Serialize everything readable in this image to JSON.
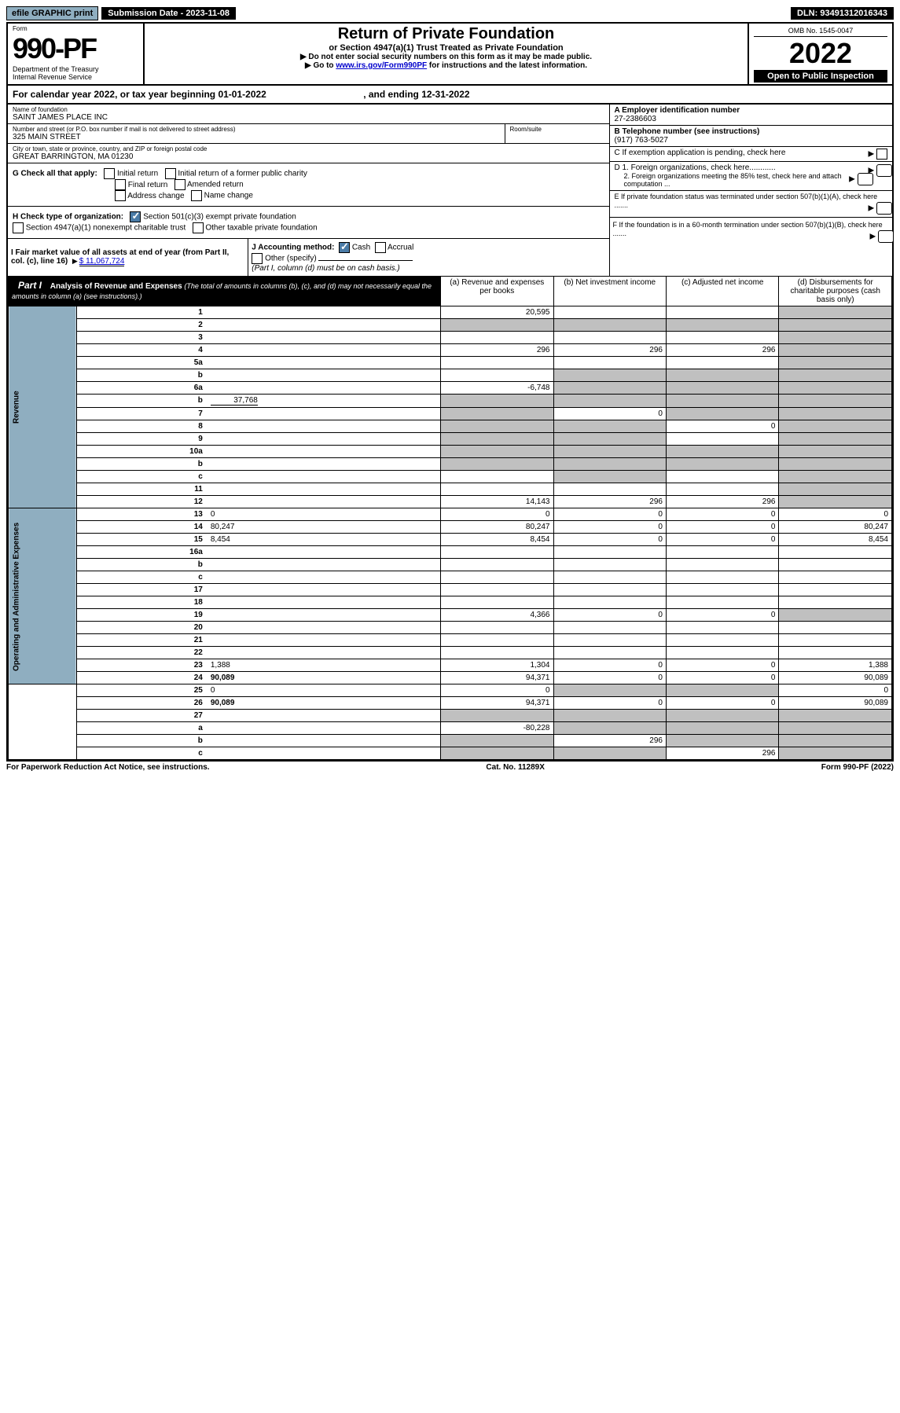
{
  "topbar": {
    "efile": "efile GRAPHIC print",
    "subdate_label": "Submission Date - 2023-11-08",
    "dln": "DLN: 93491312016343"
  },
  "header": {
    "form_label": "Form",
    "form_number": "990-PF",
    "dept": "Department of the Treasury",
    "irs": "Internal Revenue Service",
    "title": "Return of Private Foundation",
    "subtitle": "or Section 4947(a)(1) Trust Treated as Private Foundation",
    "instr1": "▶ Do not enter social security numbers on this form as it may be made public.",
    "instr2_pre": "▶ Go to ",
    "instr2_link": "www.irs.gov/Form990PF",
    "instr2_post": " for instructions and the latest information.",
    "omb": "OMB No. 1545-0047",
    "year": "2022",
    "open": "Open to Public Inspection"
  },
  "calyear": {
    "text_pre": "For calendar year 2022, or tax year beginning ",
    "begin": "01-01-2022",
    "mid": " , and ending ",
    "end": "12-31-2022"
  },
  "entity": {
    "name_label": "Name of foundation",
    "name": "SAINT JAMES PLACE INC",
    "addr_label": "Number and street (or P.O. box number if mail is not delivered to street address)",
    "addr": "325 MAIN STREET",
    "room_label": "Room/suite",
    "city_label": "City or town, state or province, country, and ZIP or foreign postal code",
    "city": "GREAT BARRINGTON, MA  01230",
    "ein_label": "A Employer identification number",
    "ein": "27-2386603",
    "tel_label": "B Telephone number (see instructions)",
    "tel": "(917) 763-5027",
    "c_label": "C If exemption application is pending, check here",
    "d1": "D 1. Foreign organizations, check here............",
    "d2": "2. Foreign organizations meeting the 85% test, check here and attach computation ...",
    "e_label": "E  If private foundation status was terminated under section 507(b)(1)(A), check here .......",
    "f_label": "F  If the foundation is in a 60-month termination under section 507(b)(1)(B), check here .......",
    "g_label": "G Check all that apply:",
    "g_opts": [
      "Initial return",
      "Initial return of a former public charity",
      "Final return",
      "Amended return",
      "Address change",
      "Name change"
    ],
    "h_label": "H Check type of organization:",
    "h_opts": [
      "Section 501(c)(3) exempt private foundation",
      "Section 4947(a)(1) nonexempt charitable trust",
      "Other taxable private foundation"
    ],
    "i_label": "I Fair market value of all assets at end of year (from Part II, col. (c), line 16)",
    "i_value": "$  11,067,724",
    "j_label": "J Accounting method:",
    "j_opts": [
      "Cash",
      "Accrual",
      "Other (specify)"
    ],
    "j_note": "(Part I, column (d) must be on cash basis.)"
  },
  "part1": {
    "header": "Part I",
    "title": "Analysis of Revenue and Expenses",
    "title_note": "(The total of amounts in columns (b), (c), and (d) may not necessarily equal the amounts in column (a) (see instructions).)",
    "cols": {
      "a": "(a) Revenue and expenses per books",
      "b": "(b) Net investment income",
      "c": "(c) Adjusted net income",
      "d": "(d) Disbursements for charitable purposes (cash basis only)"
    },
    "side_revenue": "Revenue",
    "side_expenses": "Operating and Administrative Expenses"
  },
  "rows": [
    {
      "n": "1",
      "d": "",
      "a": "20,595",
      "b": "",
      "c": "",
      "dgray": true
    },
    {
      "n": "2",
      "d": "",
      "a": "",
      "b": "",
      "c": "",
      "allgray": true
    },
    {
      "n": "3",
      "d": "",
      "a": "",
      "b": "",
      "c": "",
      "dgray": true
    },
    {
      "n": "4",
      "d": "",
      "a": "296",
      "b": "296",
      "c": "296",
      "dgray": true
    },
    {
      "n": "5a",
      "d": "",
      "a": "",
      "b": "",
      "c": "",
      "dgray": true
    },
    {
      "n": "b",
      "d": "",
      "a": "",
      "b": "",
      "c": "",
      "bcdgray": true
    },
    {
      "n": "6a",
      "d": "",
      "a": "-6,748",
      "b": "",
      "c": "",
      "bcdgray": true
    },
    {
      "n": "b",
      "d": "",
      "inline": "37,768",
      "a": "",
      "b": "",
      "c": "",
      "allgray": true
    },
    {
      "n": "7",
      "d": "",
      "a": "",
      "b": "0",
      "c": "",
      "agray": true,
      "cdgray": true
    },
    {
      "n": "8",
      "d": "",
      "a": "",
      "b": "",
      "c": "0",
      "abgray": true,
      "dgray": true
    },
    {
      "n": "9",
      "d": "",
      "a": "",
      "b": "",
      "c": "",
      "abgray": true,
      "dgray": true
    },
    {
      "n": "10a",
      "d": "",
      "a": "",
      "b": "",
      "c": "",
      "allgray": true
    },
    {
      "n": "b",
      "d": "",
      "a": "",
      "b": "",
      "c": "",
      "allgray": true
    },
    {
      "n": "c",
      "d": "",
      "a": "",
      "b": "",
      "c": "",
      "bgray": true,
      "dgray": true
    },
    {
      "n": "11",
      "d": "",
      "a": "",
      "b": "",
      "c": "",
      "dgray": true
    },
    {
      "n": "12",
      "d": "",
      "bold": true,
      "a": "14,143",
      "b": "296",
      "c": "296",
      "dgray": true
    },
    {
      "n": "13",
      "d": "0",
      "a": "0",
      "b": "0",
      "c": "0"
    },
    {
      "n": "14",
      "d": "80,247",
      "a": "80,247",
      "b": "0",
      "c": "0"
    },
    {
      "n": "15",
      "d": "8,454",
      "a": "8,454",
      "b": "0",
      "c": "0"
    },
    {
      "n": "16a",
      "d": "",
      "a": "",
      "b": "",
      "c": ""
    },
    {
      "n": "b",
      "d": "",
      "a": "",
      "b": "",
      "c": ""
    },
    {
      "n": "c",
      "d": "",
      "a": "",
      "b": "",
      "c": ""
    },
    {
      "n": "17",
      "d": "",
      "a": "",
      "b": "",
      "c": ""
    },
    {
      "n": "18",
      "d": "",
      "a": "",
      "b": "",
      "c": ""
    },
    {
      "n": "19",
      "d": "",
      "a": "4,366",
      "b": "0",
      "c": "0",
      "dgray": true
    },
    {
      "n": "20",
      "d": "",
      "a": "",
      "b": "",
      "c": ""
    },
    {
      "n": "21",
      "d": "",
      "a": "",
      "b": "",
      "c": ""
    },
    {
      "n": "22",
      "d": "",
      "a": "",
      "b": "",
      "c": ""
    },
    {
      "n": "23",
      "d": "1,388",
      "a": "1,304",
      "b": "0",
      "c": "0"
    },
    {
      "n": "24",
      "d": "90,089",
      "bold": true,
      "a": "94,371",
      "b": "0",
      "c": "0"
    },
    {
      "n": "25",
      "d": "0",
      "a": "0",
      "b": "",
      "c": "",
      "bcgray": true
    },
    {
      "n": "26",
      "d": "90,089",
      "bold": true,
      "a": "94,371",
      "b": "0",
      "c": "0"
    },
    {
      "n": "27",
      "d": "",
      "a": "",
      "b": "",
      "c": "",
      "allgray": true
    },
    {
      "n": "a",
      "d": "",
      "bold": true,
      "a": "-80,228",
      "b": "",
      "c": "",
      "bcdgray": true
    },
    {
      "n": "b",
      "d": "",
      "bold": true,
      "a": "",
      "b": "296",
      "c": "",
      "agray": true,
      "cdgray": true
    },
    {
      "n": "c",
      "d": "",
      "bold": true,
      "a": "",
      "b": "",
      "c": "296",
      "abgray": true,
      "dgray": true
    }
  ],
  "footer": {
    "left": "For Paperwork Reduction Act Notice, see instructions.",
    "mid": "Cat. No. 11289X",
    "right": "Form 990-PF (2022)"
  }
}
